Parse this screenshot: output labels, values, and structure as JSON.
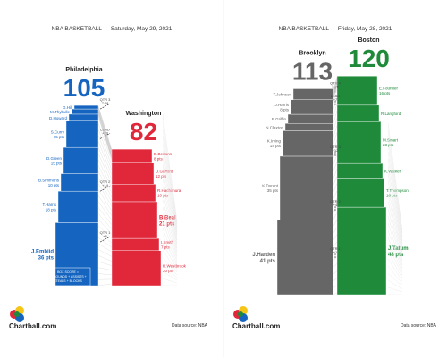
{
  "logo_text": "Chartball.com",
  "source_text": "Data source: NBA",
  "chart_data": [
    {
      "type": "bar",
      "title": "NBA BASKETBALL — Saturday, May 29, 2021",
      "team_left": {
        "name": "Philadelphia",
        "score": "105",
        "color": "#1565c0",
        "players": [
          {
            "name": "J.Embiid",
            "pts": "36 pts",
            "value": 36,
            "bold": true
          },
          {
            "name": "T.Harris",
            "pts": "18 pts",
            "value": 18
          },
          {
            "name": "B.Simmons",
            "pts": "10 pts",
            "value": 10
          },
          {
            "name": "D.Green",
            "pts": "15 pts",
            "value": 15
          },
          {
            "name": "S.Curry",
            "pts": "15 pts",
            "value": 15
          },
          {
            "name": "D.Howard",
            "pts": "",
            "value": 4
          },
          {
            "name": "M.Thybulle",
            "pts": "",
            "value": 3
          },
          {
            "name": "G.Hill",
            "pts": "",
            "value": 2
          }
        ]
      },
      "team_right": {
        "name": "Washington",
        "score": "82",
        "color": "#e0283a",
        "players": [
          {
            "name": "R.Westbrook",
            "pts": "20 pts",
            "value": 20
          },
          {
            "name": "I.Smith",
            "pts": "7 pts",
            "value": 7
          },
          {
            "name": "B.Beal",
            "pts": "21 pts",
            "value": 21,
            "bold": true
          },
          {
            "name": "R.Hachimura",
            "pts": "10 pts",
            "value": 10
          },
          {
            "name": "D.Gafford",
            "pts": "12 pts",
            "value": 12
          },
          {
            "name": "D.Bertans",
            "pts": "8 pts",
            "value": 8
          }
        ]
      },
      "qtr_markers": [
        {
          "label": "QTR 3 7:48",
          "y": 103
        },
        {
          "label": "LEAD +23",
          "y": 86
        },
        {
          "label": "QTR 2 +14",
          "y": 56
        },
        {
          "label": "QTR 1 +8",
          "y": 27
        }
      ],
      "legend": "BOX SCORE = REBOUNDS + ASSISTS + STEALS + BLOCKS",
      "ylim": [
        0,
        125
      ]
    },
    {
      "type": "bar",
      "title": "NBA BASKETBALL — Friday, May 28, 2021",
      "team_left": {
        "name": "Brooklyn",
        "score": "113",
        "color": "#666666",
        "players": [
          {
            "name": "J.Harden",
            "pts": "41 pts",
            "value": 41,
            "bold": true
          },
          {
            "name": "K.Durant",
            "pts": "35 pts",
            "value": 35
          },
          {
            "name": "K.Irving",
            "pts": "14 pts",
            "value": 14
          },
          {
            "name": "N.Claxton",
            "pts": "",
            "value": 4
          },
          {
            "name": "B.Griffin",
            "pts": "",
            "value": 5
          },
          {
            "name": "J.Harris",
            "pts": "8 pts",
            "value": 8
          },
          {
            "name": "T.Johnson",
            "pts": "",
            "value": 6
          }
        ]
      },
      "team_right": {
        "name": "Boston",
        "score": "120",
        "color": "#1e8a3a",
        "players": [
          {
            "name": "J.Tatum",
            "pts": "48 pts",
            "value": 48,
            "bold": true
          },
          {
            "name": "T.Thompson",
            "pts": "16 pts",
            "value": 16
          },
          {
            "name": "K.Walker",
            "pts": "",
            "value": 8
          },
          {
            "name": "M.Smart",
            "pts": "23 pts",
            "value": 23
          },
          {
            "name": "R.Langford",
            "pts": "",
            "value": 9
          },
          {
            "name": "E.Fournier",
            "pts": "16 pts",
            "value": 16
          }
        ]
      },
      "qtr_markers": [
        {
          "label": "QTR 4 1:35",
          "y": 113
        },
        {
          "label": "LEAD +7",
          "y": 106
        },
        {
          "label": "QTR 3 +12",
          "y": 78
        },
        {
          "label": "QTR 2 +4",
          "y": 48
        },
        {
          "label": "QTR 1 +1",
          "y": 22
        }
      ],
      "ylim": [
        0,
        125
      ]
    }
  ]
}
